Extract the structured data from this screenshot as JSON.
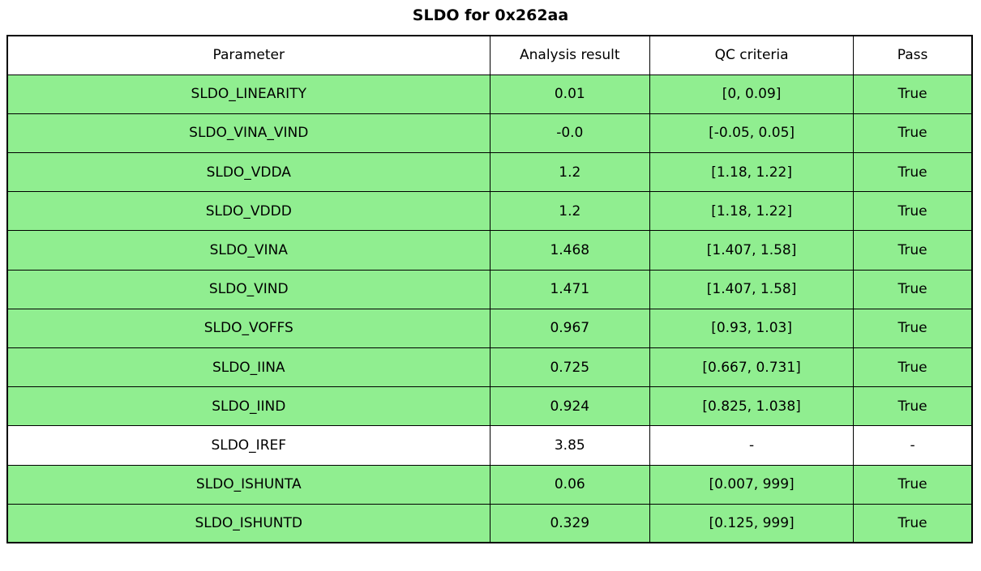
{
  "title": "SLDO for 0x262aa",
  "colors": {
    "pass_row_bg": "#90ee90",
    "neutral_row_bg": "#ffffff",
    "border": "#000000",
    "text": "#000000",
    "page_bg": "#ffffff"
  },
  "chart_data": {
    "type": "table",
    "title": "SLDO for 0x262aa",
    "columns": [
      "Parameter",
      "Analysis result",
      "QC criteria",
      "Pass"
    ],
    "rows": [
      {
        "parameter": "SLDO_LINEARITY",
        "result": "0.01",
        "criteria": "[0, 0.09]",
        "pass": "True",
        "highlight": true
      },
      {
        "parameter": "SLDO_VINA_VIND",
        "result": "-0.0",
        "criteria": "[-0.05, 0.05]",
        "pass": "True",
        "highlight": true
      },
      {
        "parameter": "SLDO_VDDA",
        "result": "1.2",
        "criteria": "[1.18, 1.22]",
        "pass": "True",
        "highlight": true
      },
      {
        "parameter": "SLDO_VDDD",
        "result": "1.2",
        "criteria": "[1.18, 1.22]",
        "pass": "True",
        "highlight": true
      },
      {
        "parameter": "SLDO_VINA",
        "result": "1.468",
        "criteria": "[1.407, 1.58]",
        "pass": "True",
        "highlight": true
      },
      {
        "parameter": "SLDO_VIND",
        "result": "1.471",
        "criteria": "[1.407, 1.58]",
        "pass": "True",
        "highlight": true
      },
      {
        "parameter": "SLDO_VOFFS",
        "result": "0.967",
        "criteria": "[0.93, 1.03]",
        "pass": "True",
        "highlight": true
      },
      {
        "parameter": "SLDO_IINA",
        "result": "0.725",
        "criteria": "[0.667, 0.731]",
        "pass": "True",
        "highlight": true
      },
      {
        "parameter": "SLDO_IIND",
        "result": "0.924",
        "criteria": "[0.825, 1.038]",
        "pass": "True",
        "highlight": true
      },
      {
        "parameter": "SLDO_IREF",
        "result": "3.85",
        "criteria": "-",
        "pass": "-",
        "highlight": false
      },
      {
        "parameter": "SLDO_ISHUNTA",
        "result": "0.06",
        "criteria": "[0.007, 999]",
        "pass": "True",
        "highlight": true
      },
      {
        "parameter": "SLDO_ISHUNTD",
        "result": "0.329",
        "criteria": "[0.125, 999]",
        "pass": "True",
        "highlight": true
      }
    ],
    "layout": {
      "column_width_pct": [
        50.0,
        16.6,
        21.1,
        12.3
      ],
      "pass_row_color": "#90ee90",
      "neutral_row_color": "#ffffff"
    }
  }
}
